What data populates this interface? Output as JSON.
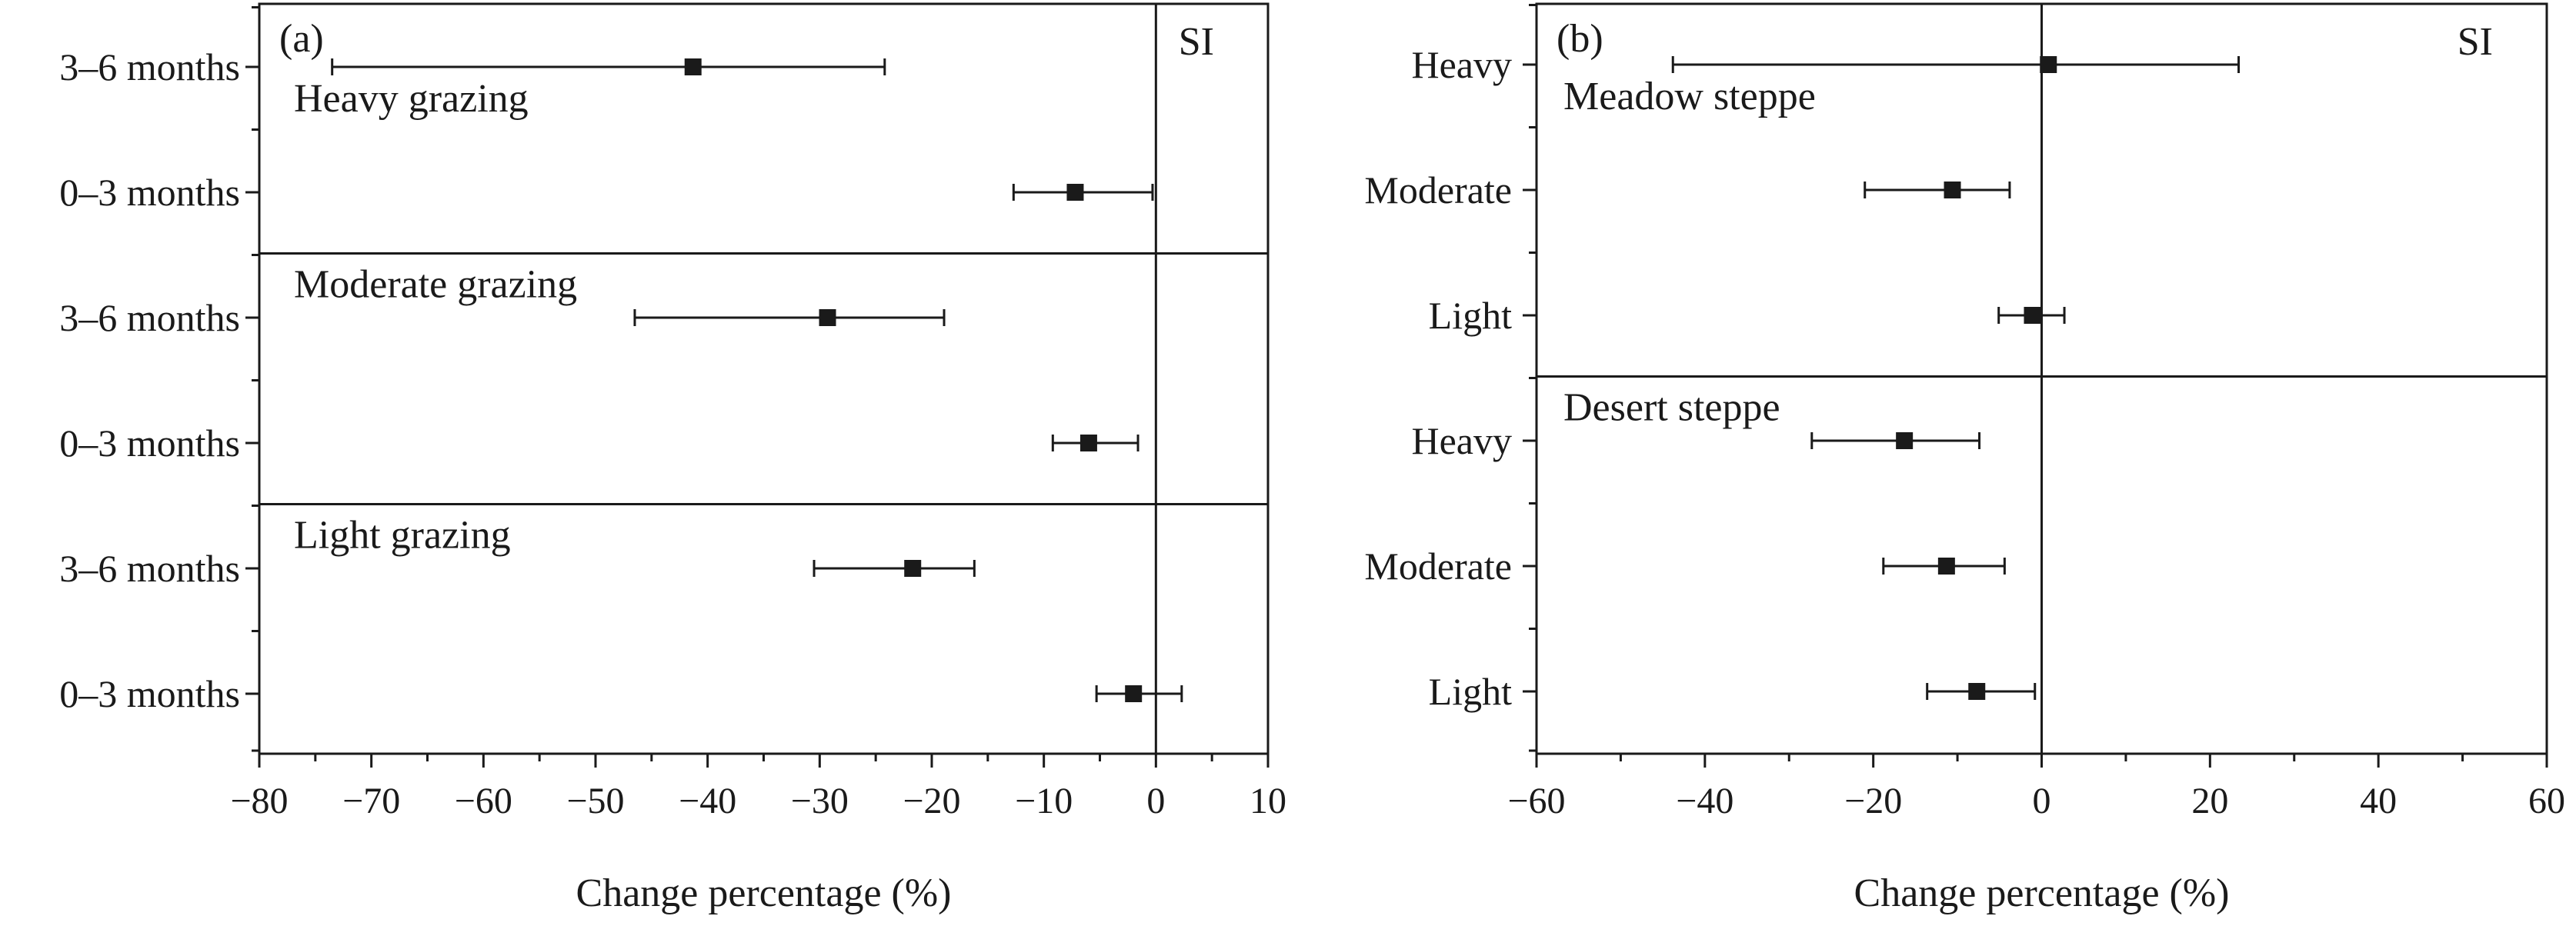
{
  "chart_data": [
    {
      "type": "scatter",
      "panel_label": "(a)",
      "metric": "SI",
      "xlabel": "Change percentage (%)",
      "xlim": [
        -80,
        10
      ],
      "xticks": [
        "−80",
        "−70",
        "−60",
        "−50",
        "−40",
        "−30",
        "−20",
        "−10",
        "0",
        "10"
      ],
      "reference_line_x": 0,
      "groups": [
        {
          "label": "Heavy grazing",
          "rows": [
            {
              "category": "3–6 months",
              "value": -41.3,
              "ci_low": -73.5,
              "ci_high": -24.2
            },
            {
              "category": "0–3 months",
              "value": -7.2,
              "ci_low": -12.7,
              "ci_high": -0.3
            }
          ]
        },
        {
          "label": "Moderate grazing",
          "rows": [
            {
              "category": "3–6 months",
              "value": -29.3,
              "ci_low": -46.5,
              "ci_high": -18.9
            },
            {
              "category": "0–3 months",
              "value": -6.0,
              "ci_low": -9.2,
              "ci_high": -1.6
            }
          ]
        },
        {
          "label": "Light grazing",
          "rows": [
            {
              "category": "3–6 months",
              "value": -21.7,
              "ci_low": -30.5,
              "ci_high": -16.2
            },
            {
              "category": "0–3 months",
              "value": -2.0,
              "ci_low": -5.3,
              "ci_high": 2.3
            }
          ]
        }
      ]
    },
    {
      "type": "scatter",
      "panel_label": "(b)",
      "metric": "SI",
      "xlabel": "Change percentage (%)",
      "xlim": [
        -60,
        60
      ],
      "xticks": [
        "−60",
        "−40",
        "−20",
        "0",
        "20",
        "40",
        "60"
      ],
      "reference_line_x": 0,
      "groups": [
        {
          "label": "Meadow steppe",
          "rows": [
            {
              "category": "Heavy",
              "value": 0.8,
              "ci_low": -43.8,
              "ci_high": 23.4
            },
            {
              "category": "Moderate",
              "value": -10.6,
              "ci_low": -21.0,
              "ci_high": -3.8
            },
            {
              "category": "Light",
              "value": -1.1,
              "ci_low": -5.1,
              "ci_high": 2.7
            }
          ]
        },
        {
          "label": "Desert steppe",
          "rows": [
            {
              "category": "Heavy",
              "value": -16.3,
              "ci_low": -27.3,
              "ci_high": -7.4
            },
            {
              "category": "Moderate",
              "value": -11.3,
              "ci_low": -18.8,
              "ci_high": -4.4
            },
            {
              "category": "Light",
              "value": -7.7,
              "ci_low": -13.6,
              "ci_high": -0.8
            }
          ]
        }
      ]
    }
  ]
}
